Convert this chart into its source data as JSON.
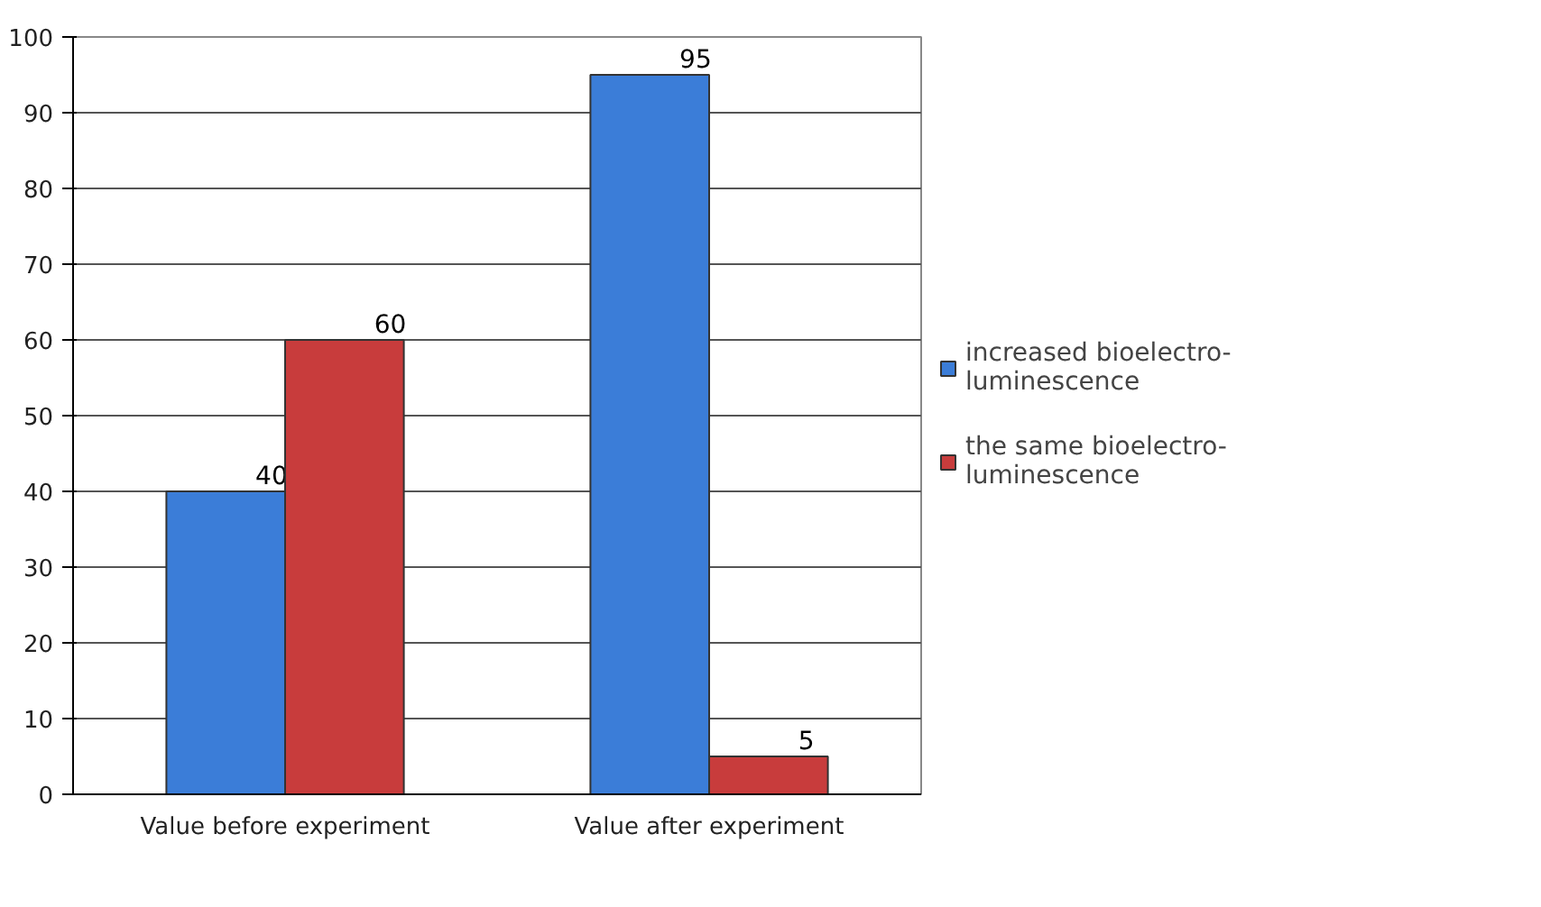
{
  "chart_data": {
    "type": "bar",
    "categories": [
      "Value before experiment",
      "Value after experiment"
    ],
    "series": [
      {
        "name": "increased bioelectro-luminescence",
        "color": "#3b7dd8",
        "values": [
          40,
          95
        ]
      },
      {
        "name": "the same bioelectro-luminescence",
        "color": "#c83c3c",
        "values": [
          60,
          5
        ]
      }
    ],
    "ylim": [
      0,
      100
    ],
    "yticks": [
      0,
      10,
      20,
      30,
      40,
      50,
      60,
      70,
      80,
      90,
      100
    ],
    "grid": "y",
    "legend": "right",
    "data_labels": true
  }
}
